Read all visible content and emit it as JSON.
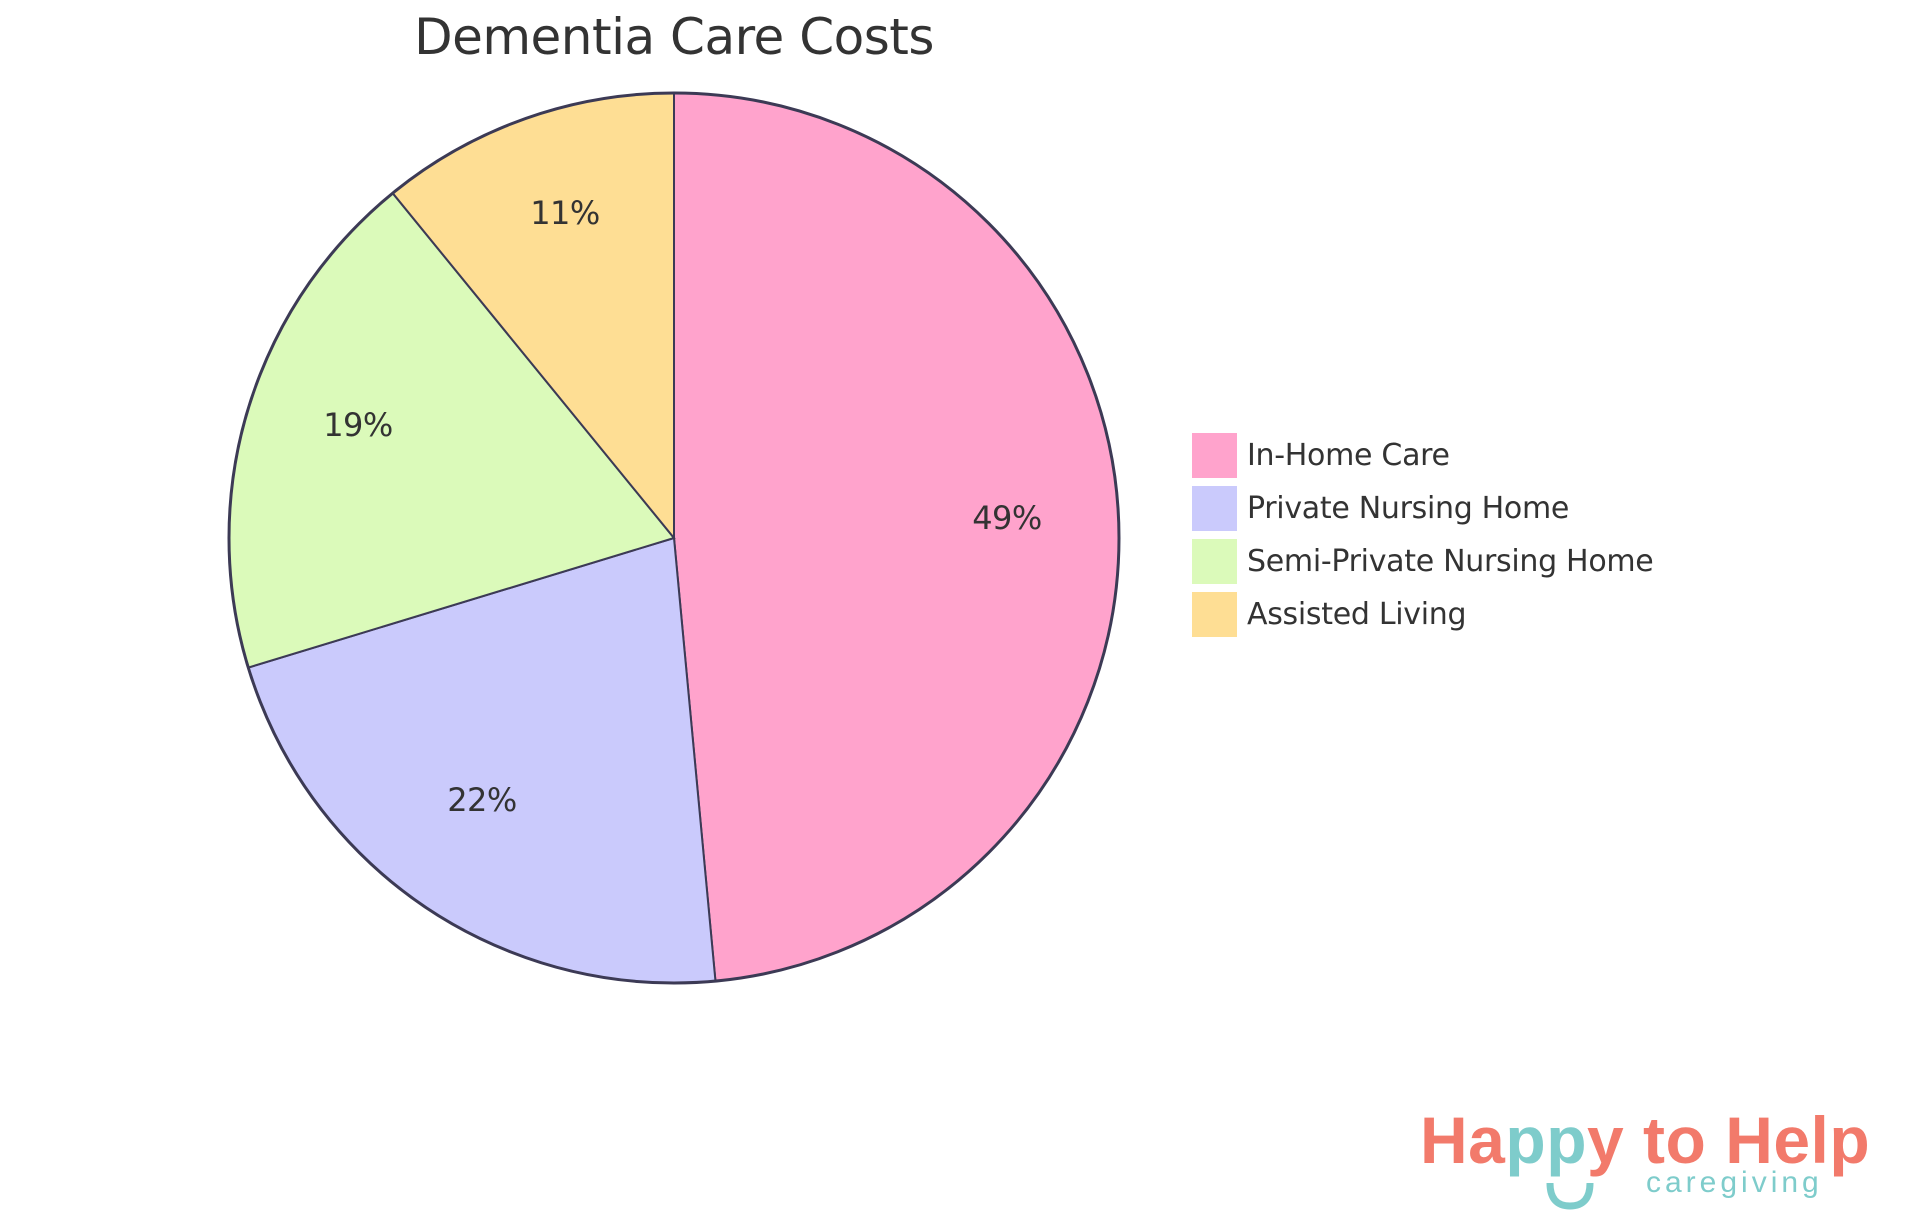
{
  "chart_data": {
    "type": "pie",
    "title": "Dementia Care Costs",
    "start_angle": "12 o'clock, clockwise",
    "slices": [
      {
        "label": "In-Home Care",
        "value": 49,
        "display": "49%",
        "color": "#FFA3CC"
      },
      {
        "label": "Private Nursing Home",
        "value": 22,
        "display": "22%",
        "color": "#CACAFC"
      },
      {
        "label": "Semi-Private Nursing Home",
        "value": 19,
        "display": "19%",
        "color": "#DBFABA"
      },
      {
        "label": "Assisted Living",
        "value": 11,
        "display": "11%",
        "color": "#FEDE94"
      }
    ],
    "legend_position": "right",
    "stroke_color": "#3C3A55"
  },
  "logo": {
    "part1": "Ha",
    "part2": "pp",
    "part3": "y to Help",
    "sub": "caregiving",
    "coral": "#F27A6B",
    "teal": "#7ECCCB"
  }
}
